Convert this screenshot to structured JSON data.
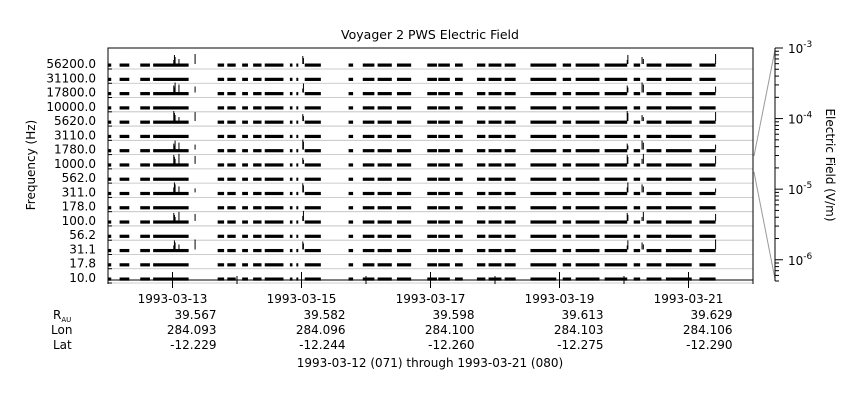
{
  "chart_data": {
    "type": "heatmap",
    "title": "Voyager 2 PWS Electric Field",
    "xlabel": "1993-03-12 (071) through 1993-03-21 (080)",
    "ylabel": "Frequency (Hz)",
    "x_range": [
      "1993-03-12T00:00",
      "1993-03-22T00:00"
    ],
    "x_ticks": [
      "1993-03-13",
      "1993-03-15",
      "1993-03-17",
      "1993-03-19",
      "1993-03-21"
    ],
    "y_ticks": [
      "56200.0",
      "31100.0",
      "17800.0",
      "10000.0",
      "5620.0",
      "3110.0",
      "1780.0",
      "1000.0",
      "562.0",
      "311.0",
      "178.0",
      "100.0",
      "56.2",
      "31.1",
      "17.8",
      "10.0"
    ],
    "channels_hz": [
      56200.0,
      31100.0,
      17800.0,
      10000.0,
      5620.0,
      3110.0,
      1780.0,
      1000.0,
      562.0,
      311.0,
      178.0,
      100.0,
      56.2,
      31.1,
      17.8,
      10.0
    ],
    "colorbar": {
      "label": "Electric Field (V/m)",
      "scale": "log",
      "range": [
        5e-07,
        0.001
      ],
      "ticks": [
        {
          "mantissa": "10",
          "exp": "-3",
          "value": 0.001
        },
        {
          "mantissa": "10",
          "exp": "-4",
          "value": 0.0001
        },
        {
          "mantissa": "10",
          "exp": "-5",
          "value": 1e-05
        },
        {
          "mantissa": "10",
          "exp": "-6",
          "value": 1e-06
        }
      ]
    },
    "coverage_days": [
      [
        0.0,
        0.05
      ],
      [
        0.18,
        0.33
      ],
      [
        0.5,
        0.65
      ],
      [
        0.7,
        1.0
      ],
      [
        1.0,
        1.25
      ],
      [
        1.7,
        1.8
      ],
      [
        1.85,
        1.98
      ],
      [
        2.08,
        2.17
      ],
      [
        2.25,
        2.38
      ],
      [
        2.43,
        2.72
      ],
      [
        2.82,
        2.86
      ],
      [
        2.92,
        2.95
      ],
      [
        3.05,
        3.3
      ],
      [
        3.73,
        3.8
      ],
      [
        3.95,
        4.13
      ],
      [
        4.18,
        4.4
      ],
      [
        4.48,
        4.7
      ],
      [
        4.95,
        5.1
      ],
      [
        5.12,
        5.3
      ],
      [
        5.38,
        5.5
      ],
      [
        5.72,
        5.85
      ],
      [
        5.9,
        6.1
      ],
      [
        6.15,
        6.32
      ],
      [
        6.55,
        6.95
      ],
      [
        7.05,
        7.18
      ],
      [
        7.25,
        7.62
      ],
      [
        7.7,
        8.05
      ],
      [
        8.15,
        8.25
      ],
      [
        8.35,
        8.58
      ],
      [
        8.65,
        9.0
      ],
      [
        9.0,
        9.05
      ],
      [
        9.17,
        9.42
      ]
    ],
    "emission_events_days": [
      1.02,
      1.03,
      1.04,
      1.1,
      1.35,
      3.02,
      3.03,
      8.05,
      8.06,
      8.28,
      8.3,
      9.42
    ],
    "ephemeris": [
      {
        "date": "1993-03-13",
        "r_au": "39.567",
        "lon": "284.093",
        "lat": "-12.229"
      },
      {
        "date": "1993-03-15",
        "r_au": "39.582",
        "lon": "284.096",
        "lat": "-12.244"
      },
      {
        "date": "1993-03-17",
        "r_au": "39.598",
        "lon": "284.100",
        "lat": "-12.260"
      },
      {
        "date": "1993-03-19",
        "r_au": "39.613",
        "lon": "284.103",
        "lat": "-12.275"
      },
      {
        "date": "1993-03-21",
        "r_au": "39.629",
        "lon": "284.106",
        "lat": "-12.290"
      }
    ],
    "row_labels": {
      "r_main": "R",
      "r_sub": "AU",
      "lon": "Lon",
      "lat": "Lat"
    },
    "grid": true
  }
}
